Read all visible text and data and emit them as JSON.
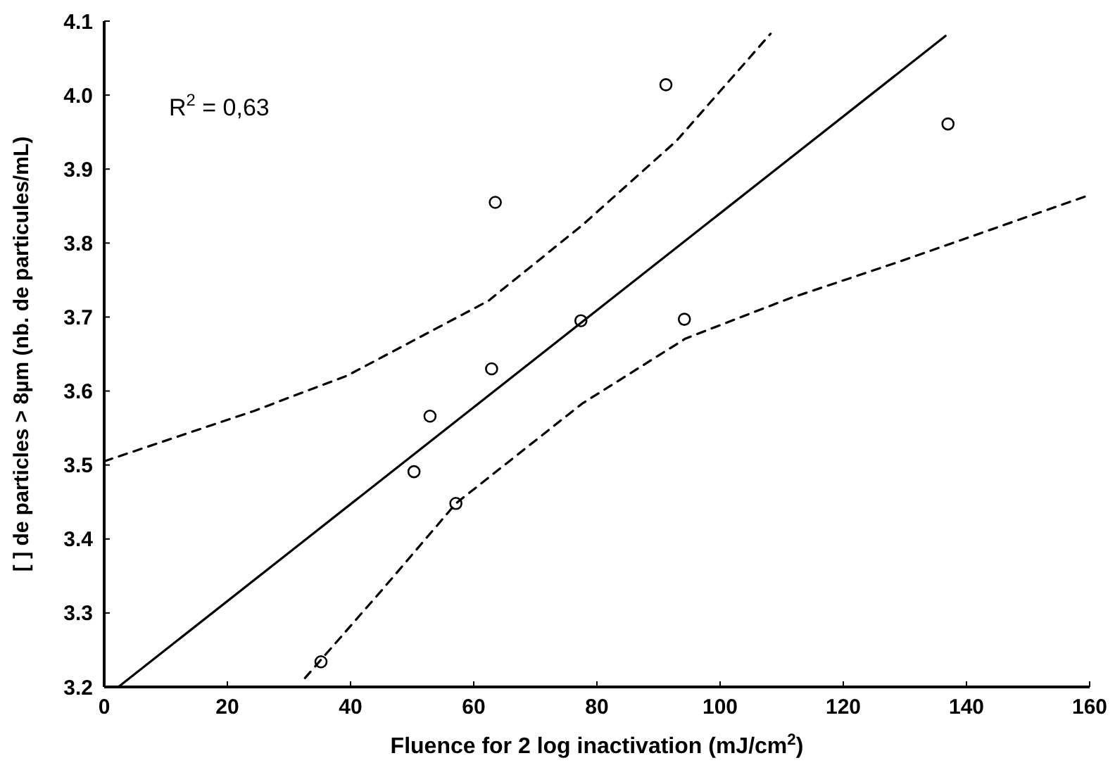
{
  "chart_data": {
    "type": "scatter",
    "xlabel": "Fluence for 2 log inactivation (mJ/cm$^{2}$)",
    "ylabel": "[ ] de particles > 8µm (nb. de particules/mL)",
    "xlim": [
      0,
      160
    ],
    "xticks": [
      0,
      20,
      40,
      60,
      80,
      100,
      120,
      140,
      160
    ],
    "ylim": [
      3.2,
      4.1
    ],
    "yticks": [
      3.2,
      3.3,
      3.4,
      3.5,
      3.6,
      3.7,
      3.8,
      3.9,
      {
        "value": 4,
        "label": "4.0"
      },
      4.1
    ],
    "grid": false,
    "annotations": [
      "R$^{2}$ = 0,63"
    ],
    "series": [
      {
        "marker": "circle",
        "color": "#000000",
        "x": [
          35.2,
          50.3,
          52.9,
          57.1,
          62.9,
          63.5,
          77.4,
          91.2,
          94.2,
          137.0
        ],
        "values": [
          3.234,
          3.491,
          3.566,
          3.448,
          3.63,
          3.855,
          3.695,
          4.014,
          3.697,
          3.961
        ]
      },
      {
        "type": "line",
        "line_style": "solid",
        "marker": "none",
        "color": "#000000",
        "x": [
          2.3,
          136.6
        ],
        "values": [
          3.2,
          4.08
        ]
      },
      {
        "type": "line",
        "line_style": "dashed",
        "marker": "none",
        "color": "#000000",
        "x": [
          0,
          24.3,
          39.5,
          62.4,
          77.6,
          92.9,
          108.2
        ],
        "values": [
          3.505,
          3.573,
          3.621,
          3.722,
          3.824,
          3.938,
          4.083
        ]
      },
      {
        "type": "line",
        "line_style": "dashed",
        "marker": "none",
        "color": "#000000",
        "x": [
          32.6,
          45,
          57.1,
          77.6,
          94.4,
          111.2,
          129.5,
          160
        ],
        "values": [
          3.212,
          3.33,
          3.448,
          3.583,
          3.671,
          3.725,
          3.776,
          3.865
        ]
      }
    ]
  }
}
